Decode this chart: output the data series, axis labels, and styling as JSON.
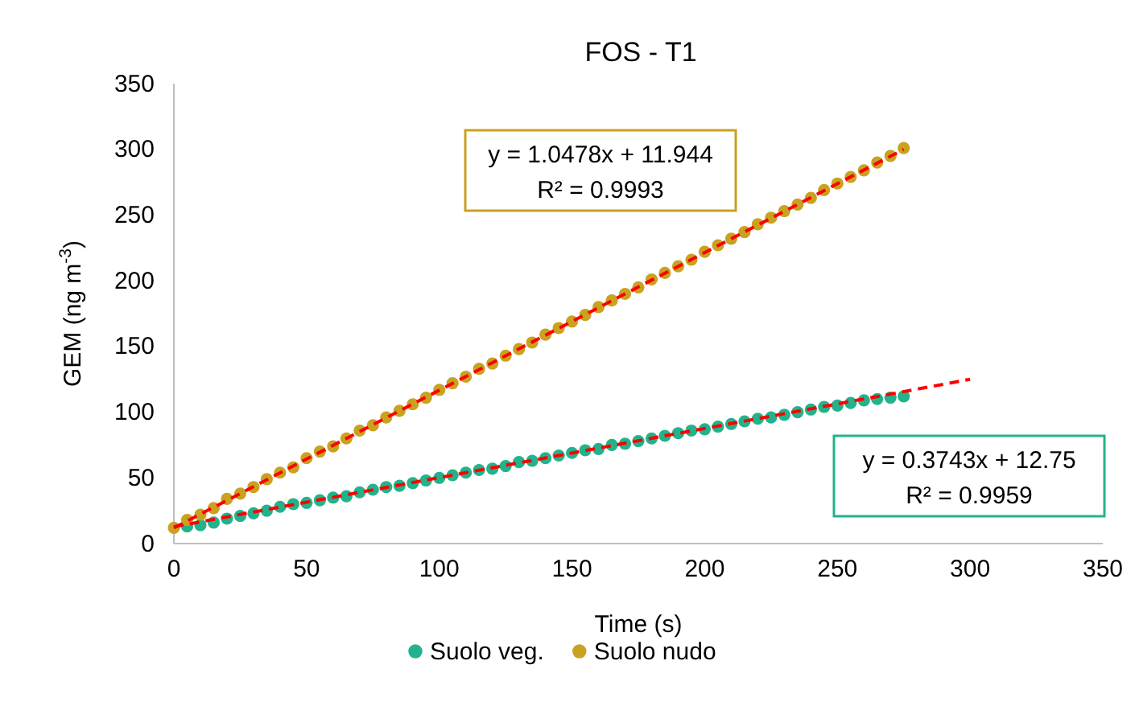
{
  "chart_data": {
    "type": "scatter",
    "title": "FOS - T1",
    "xlabel": "Time (s)",
    "ylabel": "GEM (ng m$^{-3}$)",
    "xlim": [
      0,
      350
    ],
    "xticks": [
      0,
      50,
      100,
      150,
      200,
      250,
      300,
      350
    ],
    "ylim": [
      0,
      350
    ],
    "yticks": [
      0,
      50,
      100,
      150,
      200,
      250,
      300,
      350
    ],
    "grid": false,
    "legend": "bottom",
    "x": [
      0,
      5,
      10,
      15,
      20,
      25,
      30,
      35,
      40,
      45,
      50,
      55,
      60,
      65,
      70,
      75,
      80,
      85,
      90,
      95,
      100,
      105,
      110,
      115,
      120,
      125,
      130,
      135,
      140,
      145,
      150,
      155,
      160,
      165,
      170,
      175,
      180,
      185,
      190,
      195,
      200,
      205,
      210,
      215,
      220,
      225,
      230,
      235,
      240,
      245,
      250,
      255,
      260,
      265,
      270,
      275
    ],
    "series": [
      {
        "name": "Suolo veg.",
        "marker": "circle",
        "color": "#22b38c",
        "values": [
          null,
          13,
          14,
          16,
          19,
          21,
          23,
          25,
          28,
          30,
          31,
          33,
          35,
          36,
          39,
          41,
          43,
          44,
          46,
          48,
          50,
          52,
          54,
          56,
          57,
          59,
          62,
          63,
          65,
          67,
          69,
          71,
          72,
          75,
          76,
          78,
          80,
          82,
          84,
          86,
          87,
          89,
          91,
          93,
          95,
          96,
          98,
          100,
          102,
          104,
          105,
          107,
          109,
          110,
          111,
          112
        ]
      },
      {
        "name": "Suolo nudo",
        "marker": "circle",
        "color": "#c9a21f",
        "values": [
          12,
          18,
          22,
          27,
          34,
          38,
          43,
          49,
          54,
          58,
          65,
          70,
          74,
          80,
          86,
          90,
          96,
          101,
          106,
          111,
          117,
          122,
          127,
          133,
          137,
          143,
          148,
          153,
          159,
          164,
          169,
          174,
          180,
          185,
          190,
          195,
          201,
          206,
          211,
          216,
          222,
          227,
          232,
          237,
          243,
          248,
          253,
          258,
          263,
          269,
          274,
          279,
          284,
          290,
          295,
          301
        ]
      },
      {
        "type": "line",
        "color": "#ff0000",
        "line_style": "dashed",
        "x": [
          0,
          300
        ],
        "values": [
          12.8,
          125
        ]
      },
      {
        "type": "line",
        "color": "#ff0000",
        "line_style": "dashed",
        "x": [
          0,
          275
        ],
        "values": [
          11.9,
          300
        ]
      }
    ],
    "annotations": [
      "y = 0.3743x + 12.75\nR² = 0.9959",
      "y = 1.0478x + 11.944\nR² = 0.9993"
    ]
  }
}
